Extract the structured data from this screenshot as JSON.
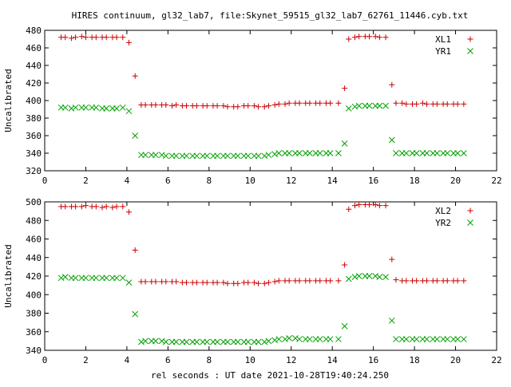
{
  "title": "HIRES continuum, gl32_lab7, file:Skynet_59515_gl32_lab7_62761_11446.cyb.txt",
  "xlabel_bottom": "rel seconds : UT date 2021-10-28T19:40:24.250",
  "chart_data": [
    {
      "type": "scatter",
      "ylabel": "Uncalibrated",
      "xlim": [
        0,
        22
      ],
      "ylim": [
        320,
        480
      ],
      "xticks": [
        0,
        2,
        4,
        6,
        8,
        10,
        12,
        14,
        16,
        18,
        20,
        22
      ],
      "yticks": [
        320,
        340,
        360,
        380,
        400,
        420,
        440,
        460,
        480
      ],
      "grid": false,
      "legend": "top-right",
      "series": [
        {
          "name": "XL1",
          "marker": "plus",
          "color": "#cc0000",
          "x": [
            0.8,
            1.0,
            1.3,
            1.5,
            1.8,
            2.0,
            2.3,
            2.5,
            2.8,
            3.0,
            3.3,
            3.5,
            3.8,
            4.1,
            4.4,
            4.7,
            4.9,
            5.2,
            5.4,
            5.7,
            5.9,
            6.2,
            6.4,
            6.7,
            6.9,
            7.2,
            7.4,
            7.7,
            7.9,
            8.2,
            8.4,
            8.7,
            8.9,
            9.2,
            9.4,
            9.7,
            9.9,
            10.2,
            10.4,
            10.7,
            10.9,
            11.2,
            11.4,
            11.7,
            11.9,
            12.2,
            12.4,
            12.7,
            12.9,
            13.2,
            13.4,
            13.7,
            13.9,
            14.3,
            14.6,
            14.8,
            15.1,
            15.3,
            15.6,
            15.8,
            16.1,
            16.3,
            16.6,
            16.9,
            17.1,
            17.4,
            17.6,
            17.9,
            18.1,
            18.4,
            18.6,
            18.9,
            19.1,
            19.4,
            19.6,
            19.9,
            20.1,
            20.4
          ],
          "y": [
            472,
            472,
            471,
            472,
            473,
            472,
            472,
            472,
            472,
            472,
            472,
            472,
            472,
            466,
            428,
            395,
            395,
            395,
            395,
            395,
            395,
            394,
            395,
            394,
            394,
            394,
            394,
            394,
            394,
            394,
            394,
            394,
            393,
            393,
            393,
            394,
            394,
            394,
            393,
            393,
            394,
            395,
            396,
            396,
            397,
            397,
            397,
            397,
            397,
            397,
            397,
            397,
            397,
            397,
            414,
            470,
            472,
            473,
            473,
            473,
            473,
            472,
            472,
            418,
            397,
            397,
            396,
            396,
            396,
            397,
            396,
            396,
            396,
            396,
            396,
            396,
            396,
            396
          ]
        },
        {
          "name": "YR1",
          "marker": "cross",
          "color": "#00a000",
          "x": [
            0.8,
            1.0,
            1.3,
            1.5,
            1.8,
            2.0,
            2.3,
            2.5,
            2.8,
            3.0,
            3.3,
            3.5,
            3.8,
            4.1,
            4.4,
            4.7,
            4.9,
            5.2,
            5.4,
            5.7,
            5.9,
            6.2,
            6.4,
            6.7,
            6.9,
            7.2,
            7.4,
            7.7,
            7.9,
            8.2,
            8.4,
            8.7,
            8.9,
            9.2,
            9.4,
            9.7,
            9.9,
            10.2,
            10.4,
            10.7,
            10.9,
            11.2,
            11.4,
            11.7,
            11.9,
            12.2,
            12.4,
            12.7,
            12.9,
            13.2,
            13.4,
            13.7,
            13.9,
            14.3,
            14.6,
            14.8,
            15.1,
            15.3,
            15.6,
            15.8,
            16.1,
            16.3,
            16.6,
            16.9,
            17.1,
            17.4,
            17.6,
            17.9,
            18.1,
            18.4,
            18.6,
            18.9,
            19.1,
            19.4,
            19.6,
            19.9,
            20.1,
            20.4
          ],
          "y": [
            392,
            392,
            391,
            392,
            392,
            392,
            392,
            392,
            391,
            391,
            391,
            391,
            392,
            388,
            360,
            338,
            338,
            338,
            338,
            338,
            337,
            337,
            337,
            337,
            337,
            337,
            337,
            337,
            337,
            337,
            337,
            337,
            337,
            337,
            337,
            337,
            337,
            337,
            337,
            337,
            338,
            339,
            340,
            340,
            340,
            340,
            340,
            340,
            340,
            340,
            340,
            340,
            340,
            340,
            351,
            391,
            393,
            394,
            394,
            394,
            394,
            394,
            394,
            355,
            340,
            340,
            340,
            340,
            340,
            340,
            340,
            340,
            340,
            340,
            340,
            340,
            340,
            340
          ]
        }
      ]
    },
    {
      "type": "scatter",
      "ylabel": "Uncalibrated",
      "xlim": [
        0,
        22
      ],
      "ylim": [
        340,
        500
      ],
      "xticks": [
        0,
        2,
        4,
        6,
        8,
        10,
        12,
        14,
        16,
        18,
        20,
        22
      ],
      "yticks": [
        340,
        360,
        380,
        400,
        420,
        440,
        460,
        480,
        500
      ],
      "grid": false,
      "legend": "top-right",
      "series": [
        {
          "name": "XL2",
          "marker": "plus",
          "color": "#cc0000",
          "x": [
            0.8,
            1.0,
            1.3,
            1.5,
            1.8,
            2.0,
            2.3,
            2.5,
            2.8,
            3.0,
            3.3,
            3.5,
            3.8,
            4.1,
            4.4,
            4.7,
            4.9,
            5.2,
            5.4,
            5.7,
            5.9,
            6.2,
            6.4,
            6.7,
            6.9,
            7.2,
            7.4,
            7.7,
            7.9,
            8.2,
            8.4,
            8.7,
            8.9,
            9.2,
            9.4,
            9.7,
            9.9,
            10.2,
            10.4,
            10.7,
            10.9,
            11.2,
            11.4,
            11.7,
            11.9,
            12.2,
            12.4,
            12.7,
            12.9,
            13.2,
            13.4,
            13.7,
            13.9,
            14.3,
            14.6,
            14.8,
            15.1,
            15.3,
            15.6,
            15.8,
            16.1,
            16.3,
            16.6,
            16.9,
            17.1,
            17.4,
            17.6,
            17.9,
            18.1,
            18.4,
            18.6,
            18.9,
            19.1,
            19.4,
            19.6,
            19.9,
            20.1,
            20.4
          ],
          "y": [
            495,
            495,
            495,
            495,
            495,
            496,
            495,
            495,
            494,
            495,
            494,
            495,
            495,
            489,
            448,
            414,
            414,
            414,
            414,
            414,
            414,
            414,
            414,
            413,
            413,
            413,
            413,
            413,
            413,
            413,
            413,
            413,
            412,
            412,
            412,
            413,
            413,
            413,
            412,
            412,
            413,
            414,
            415,
            415,
            415,
            415,
            415,
            415,
            415,
            415,
            415,
            415,
            415,
            415,
            432,
            492,
            496,
            497,
            497,
            497,
            497,
            496,
            496,
            438,
            416,
            415,
            415,
            415,
            415,
            415,
            415,
            415,
            415,
            415,
            415,
            415,
            415,
            415
          ]
        },
        {
          "name": "YR2",
          "marker": "cross",
          "color": "#00a000",
          "x": [
            0.8,
            1.0,
            1.3,
            1.5,
            1.8,
            2.0,
            2.3,
            2.5,
            2.8,
            3.0,
            3.3,
            3.5,
            3.8,
            4.1,
            4.4,
            4.7,
            4.9,
            5.2,
            5.4,
            5.7,
            5.9,
            6.2,
            6.4,
            6.7,
            6.9,
            7.2,
            7.4,
            7.7,
            7.9,
            8.2,
            8.4,
            8.7,
            8.9,
            9.2,
            9.4,
            9.7,
            9.9,
            10.2,
            10.4,
            10.7,
            10.9,
            11.2,
            11.4,
            11.7,
            11.9,
            12.2,
            12.4,
            12.7,
            12.9,
            13.2,
            13.4,
            13.7,
            13.9,
            14.3,
            14.6,
            14.8,
            15.1,
            15.3,
            15.6,
            15.8,
            16.1,
            16.3,
            16.6,
            16.9,
            17.1,
            17.4,
            17.6,
            17.9,
            18.1,
            18.4,
            18.6,
            18.9,
            19.1,
            19.4,
            19.6,
            19.9,
            20.1,
            20.4
          ],
          "y": [
            418,
            419,
            418,
            418,
            418,
            418,
            418,
            418,
            418,
            418,
            418,
            418,
            418,
            413,
            379,
            349,
            350,
            350,
            350,
            350,
            349,
            349,
            349,
            349,
            349,
            349,
            349,
            349,
            349,
            349,
            349,
            349,
            349,
            349,
            349,
            349,
            349,
            349,
            349,
            349,
            350,
            351,
            352,
            352,
            353,
            353,
            352,
            352,
            352,
            352,
            352,
            352,
            352,
            352,
            366,
            417,
            419,
            420,
            420,
            420,
            420,
            419,
            419,
            372,
            352,
            352,
            352,
            352,
            352,
            352,
            352,
            352,
            352,
            352,
            352,
            352,
            352,
            352
          ]
        }
      ]
    }
  ]
}
